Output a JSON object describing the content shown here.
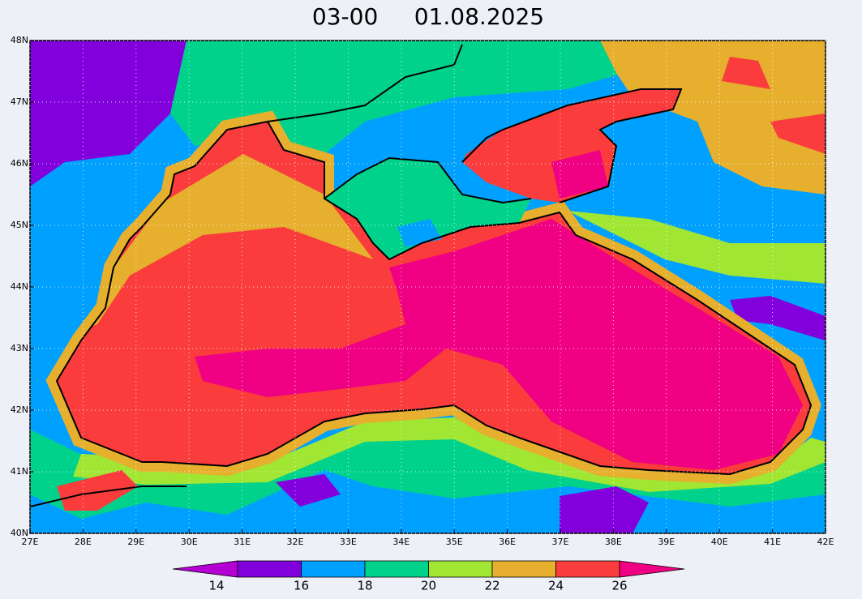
{
  "map": {
    "title": "03-00     01.08.2025",
    "xlim": [
      27,
      42
    ],
    "ylim": [
      40,
      48
    ],
    "xticks": [
      {
        "value": 27,
        "label": "27E"
      },
      {
        "value": 28,
        "label": "28E"
      },
      {
        "value": 29,
        "label": "29E"
      },
      {
        "value": 30,
        "label": "30E"
      },
      {
        "value": 31,
        "label": "31E"
      },
      {
        "value": 32,
        "label": "32E"
      },
      {
        "value": 33,
        "label": "33E"
      },
      {
        "value": 34,
        "label": "34E"
      },
      {
        "value": 35,
        "label": "35E"
      },
      {
        "value": 36,
        "label": "36E"
      },
      {
        "value": 37,
        "label": "37E"
      },
      {
        "value": 38,
        "label": "38E"
      },
      {
        "value": 39,
        "label": "39E"
      },
      {
        "value": 40,
        "label": "40E"
      },
      {
        "value": 41,
        "label": "41E"
      },
      {
        "value": 42,
        "label": "42E"
      }
    ],
    "yticks": [
      {
        "value": 40,
        "label": "40N"
      },
      {
        "value": 41,
        "label": "41N"
      },
      {
        "value": 42,
        "label": "42N"
      },
      {
        "value": 43,
        "label": "43N"
      },
      {
        "value": 44,
        "label": "44N"
      },
      {
        "value": 45,
        "label": "45N"
      },
      {
        "value": 46,
        "label": "46N"
      },
      {
        "value": 47,
        "label": "47N"
      },
      {
        "value": 48,
        "label": "48N"
      }
    ],
    "colorbar": {
      "ticks": [
        14,
        16,
        18,
        20,
        22,
        24,
        26
      ],
      "colors": [
        "#b400d2",
        "#8200dc",
        "#00a0ff",
        "#00d28c",
        "#a0e632",
        "#e6af2d",
        "#fa3c3c",
        "#f00082"
      ]
    }
  }
}
